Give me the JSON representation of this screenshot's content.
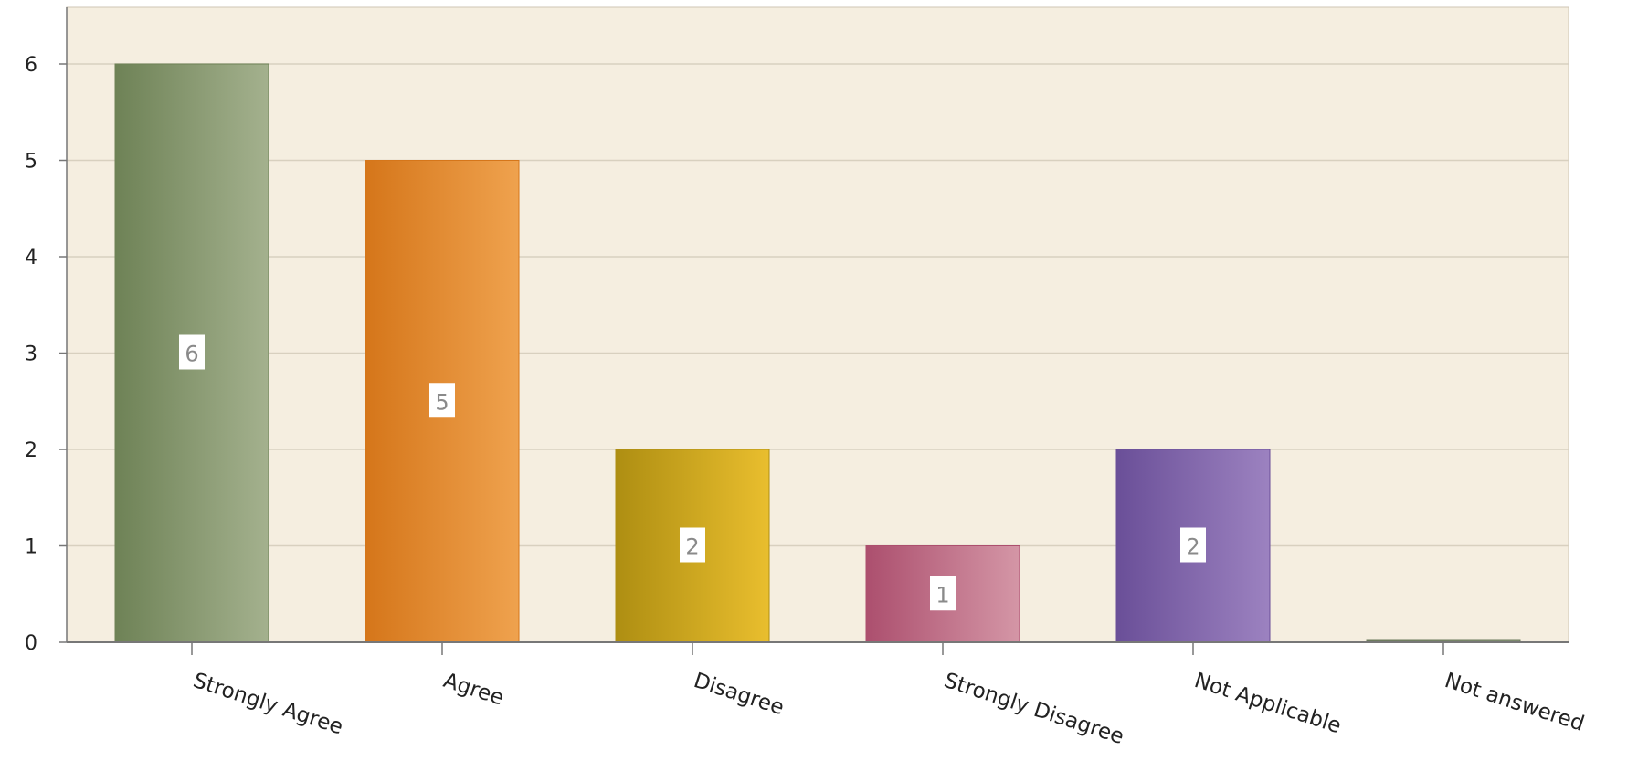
{
  "chart_data": {
    "type": "bar",
    "categories": [
      "Strongly Agree",
      "Agree",
      "Disagree",
      "Strongly Disagree",
      "Not Applicable",
      "Not answered"
    ],
    "values": [
      6,
      5,
      2,
      1,
      2,
      0
    ],
    "data_labels": [
      "6",
      "5",
      "2",
      "1",
      "2",
      ""
    ],
    "yticks": [
      "0",
      "1",
      "2",
      "3",
      "4",
      "5",
      "6"
    ],
    "ylim": [
      0,
      6.6
    ],
    "grid": true,
    "colors": {
      "plot_background": "#f5eee0",
      "gridline": "#d8d0bf",
      "axis": "#777777",
      "bars": [
        [
          "#6e8256",
          "#a4b18e"
        ],
        [
          "#d5761a",
          "#efa24e"
        ],
        [
          "#ae8e12",
          "#e9be2e"
        ],
        [
          "#ac4f6e",
          "#d496a6"
        ],
        [
          "#6a4f98",
          "#9c82c0"
        ],
        [
          "#6c7a5c",
          "#8e9c7e"
        ]
      ]
    }
  }
}
